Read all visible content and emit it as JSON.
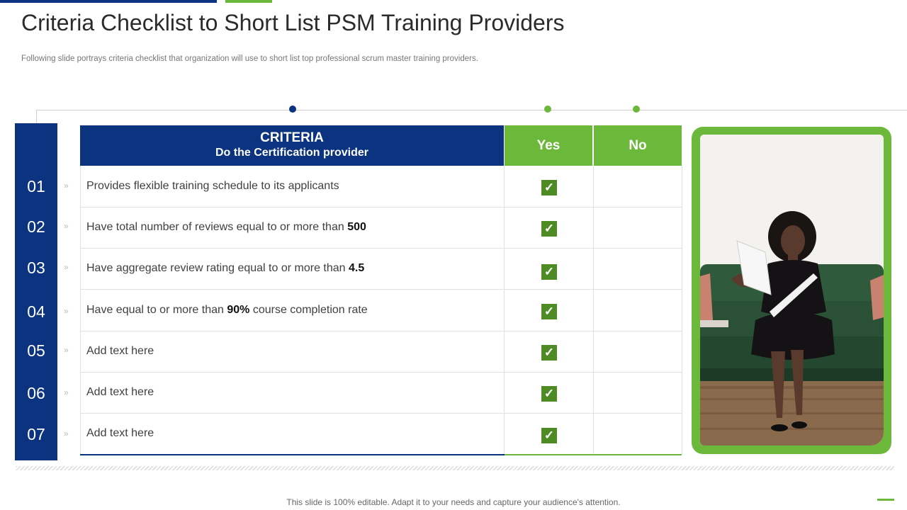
{
  "slide": {
    "title": "Criteria Checklist to Short List PSM Training Providers",
    "subtitle": "Following slide portrays criteria checklist that organization will use to short list top professional scrum master training providers.",
    "footer": "This slide is 100% editable. Adapt it to your needs and capture your audience's attention."
  },
  "table": {
    "header": {
      "criteria_line1": "CRITERIA",
      "criteria_line2": "Do the Certification provider",
      "yes": "Yes",
      "no": "No"
    },
    "rows": [
      {
        "num": "01",
        "before": "Provides flexible training schedule to its applicants",
        "bold": "",
        "after": "",
        "yes": true,
        "no": false
      },
      {
        "num": "02",
        "before": "Have total number  of reviews equal to or more than ",
        "bold": "500",
        "after": "",
        "yes": true,
        "no": false
      },
      {
        "num": "03",
        "before": "Have aggregate review rating equal to or more than ",
        "bold": "4.5",
        "after": "",
        "yes": true,
        "no": false
      },
      {
        "num": "04",
        "before": "Have equal to or more than ",
        "bold": "90%",
        "after": " course completion rate",
        "yes": true,
        "no": false
      },
      {
        "num": "05",
        "before": "Add text here",
        "bold": "",
        "after": "",
        "yes": true,
        "no": false
      },
      {
        "num": "06",
        "before": "Add text here",
        "bold": "",
        "after": "",
        "yes": true,
        "no": false
      },
      {
        "num": "07",
        "before": "Add text here",
        "bold": "",
        "after": "",
        "yes": true,
        "no": false
      }
    ]
  },
  "icons": {
    "check": "check-icon",
    "chevron": "double-chevron-right-icon"
  },
  "colors": {
    "brand_blue": "#0b3380",
    "brand_green": "#6cb83a",
    "check_green": "#4e8b25"
  }
}
